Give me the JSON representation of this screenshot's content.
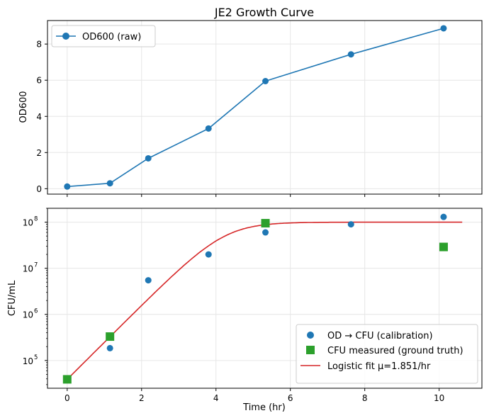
{
  "chart_data": [
    {
      "type": "line",
      "title": "JE2 Growth Curve",
      "xlabel": "",
      "ylabel": "OD600",
      "xlim": [
        -0.53,
        11.15
      ],
      "ylim": [
        -0.3,
        9.3
      ],
      "y_ticks": [
        0,
        2,
        4,
        6,
        8
      ],
      "grid": true,
      "legend_position": "top-left",
      "series": [
        {
          "name": "OD600 (raw)",
          "color": "#1f77b4",
          "marker": "circle",
          "x": [
            0,
            1.15,
            2.18,
            3.8,
            5.33,
            7.63,
            10.12
          ],
          "y": [
            0.12,
            0.3,
            1.68,
            3.33,
            5.95,
            7.43,
            8.87
          ]
        }
      ]
    },
    {
      "type": "scatter",
      "title": "",
      "xlabel": "Time (hr)",
      "ylabel": "CFU/mL",
      "yscale": "log",
      "xlim": [
        -0.53,
        11.15
      ],
      "ylim": [
        25000,
        200000000
      ],
      "x_ticks": [
        0,
        2,
        4,
        6,
        8,
        10
      ],
      "y_tick_exponents": [
        5,
        6,
        7,
        8
      ],
      "y_tick_base": "10",
      "grid": true,
      "legend_position": "bottom-right",
      "series": [
        {
          "name": "OD → CFU (calibration)",
          "color": "#1f77b4",
          "marker": "circle",
          "x": [
            0,
            1.15,
            2.18,
            3.8,
            5.33,
            7.63,
            10.12
          ],
          "y": [
            39000,
            185000,
            5500000,
            20000000,
            60000000,
            90000000,
            130000000
          ]
        },
        {
          "name": "CFU measured (ground truth)",
          "color": "#2ca02c",
          "marker": "square",
          "x": [
            0,
            1.15,
            5.33,
            10.12
          ],
          "y": [
            39000,
            330000,
            95000000,
            29000000
          ]
        },
        {
          "name": "Logistic fit  μ=1.851/hr",
          "color": "#d62728",
          "marker": "none",
          "model": {
            "N0": 39000,
            "K": 100000000,
            "mu": 1.851,
            "x_start": 0,
            "x_end": 10.62
          }
        }
      ]
    }
  ]
}
